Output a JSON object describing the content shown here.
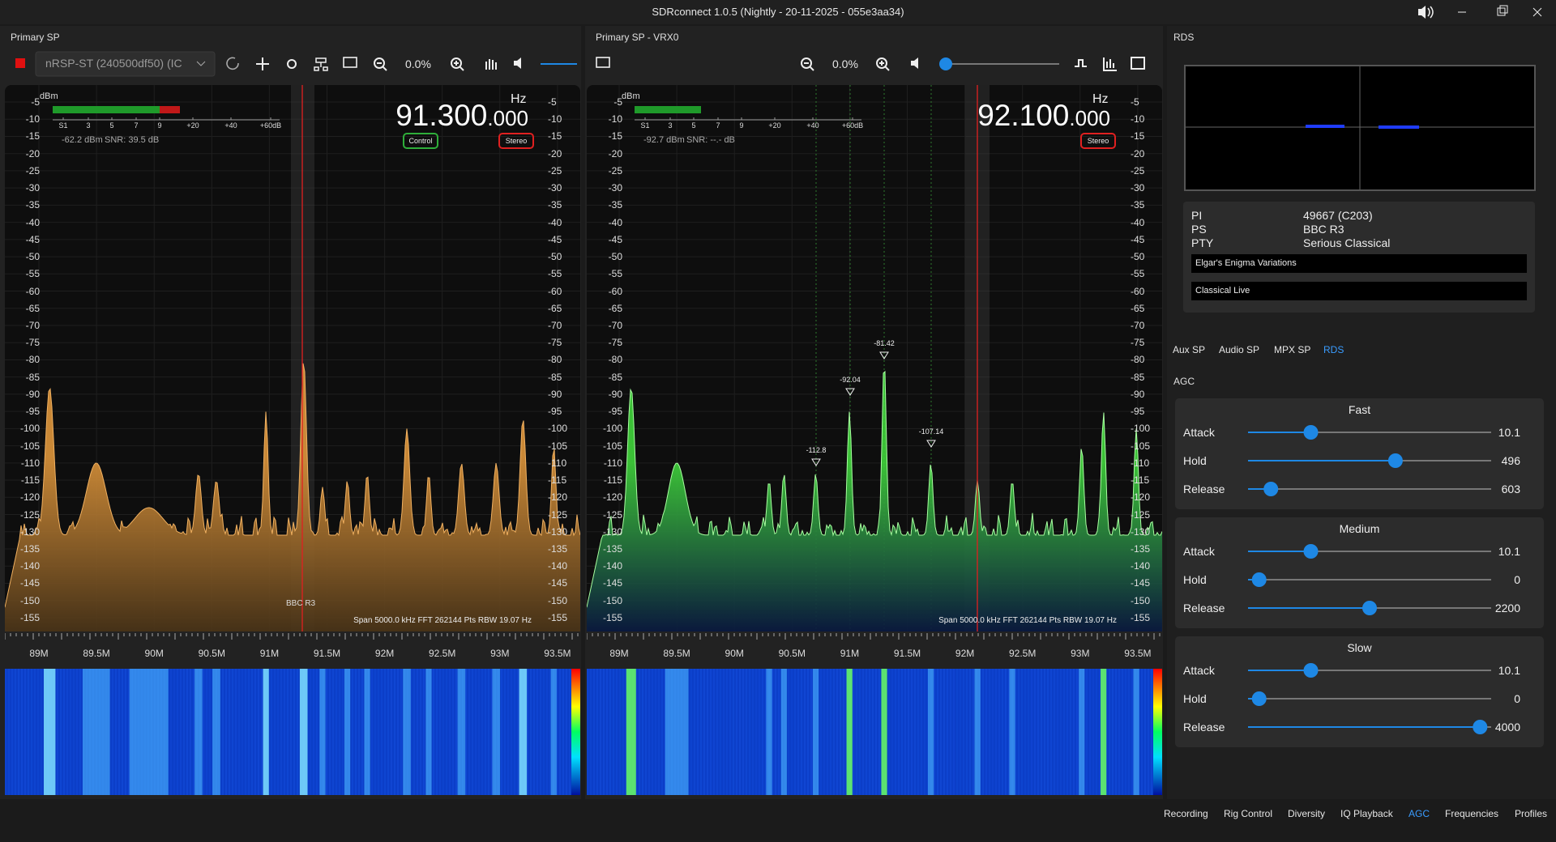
{
  "window": {
    "title": "SDRconnect 1.0.5 (Nightly - 20-11-2025 - 055e3aa34)"
  },
  "db_ticks": [
    "-5",
    "-10",
    "-15",
    "-20",
    "-25",
    "-30",
    "-35",
    "-40",
    "-45",
    "-50",
    "-55",
    "-60",
    "-65",
    "-70",
    "-75",
    "-80",
    "-85",
    "-90",
    "-95",
    "-100",
    "-105",
    "-110",
    "-115",
    "-120",
    "-125",
    "-130",
    "-135",
    "-140",
    "-145",
    "-150",
    "-155"
  ],
  "freq_ticks": [
    "89M",
    "89.5M",
    "90M",
    "90.5M",
    "91M",
    "91.5M",
    "92M",
    "92.5M",
    "93M",
    "93.5M"
  ],
  "smeter_scale": [
    "S1",
    "3",
    "5",
    "7",
    "9",
    "+20",
    "+40",
    "+60dB"
  ],
  "panels": [
    {
      "header": "Primary SP",
      "device": "nRSP-ST (240500df50) (IC",
      "zoom": "0.0%",
      "unit": "dBm",
      "level": "-62.2 dBm",
      "snr": "SNR:  39.5 dB",
      "freq_main": "91.300",
      "freq_sub": ".000",
      "hz": "Hz",
      "badges": [
        "Control",
        "Stereo"
      ],
      "station": "BBC R3",
      "span": "Span 5000.0 kHz FFT 262144 Pts  RBW 19.07 Hz",
      "markers": []
    },
    {
      "header": "Primary SP - VRX0",
      "zoom": "0.0%",
      "unit": "dBm",
      "level": "-92.7 dBm",
      "snr": "SNR:  --.- dB",
      "freq_main": "92.100",
      "freq_sub": ".000",
      "hz": "Hz",
      "badges": [
        "Stereo"
      ],
      "span": "Span 5000.0 kHz FFT 262144 Pts  RBW 19.07 Hz",
      "markers": [
        "-112.8",
        "-92.04",
        "-81.42",
        "-107.14"
      ]
    }
  ],
  "rds": {
    "title": "RDS",
    "fields": [
      {
        "key": "PI",
        "value": "49667 (C203)"
      },
      {
        "key": "PS",
        "value": "BBC R3"
      },
      {
        "key": "PTY",
        "value": "Serious Classical"
      }
    ],
    "radiotext": [
      "Elgar's Enigma Variations",
      "Classical Live"
    ],
    "tabs": [
      "Aux SP",
      "Audio SP",
      "MPX SP",
      "RDS"
    ]
  },
  "agc": {
    "title": "AGC",
    "groups": [
      {
        "name": "Fast",
        "rows": [
          {
            "label": "Attack",
            "value": "10.1"
          },
          {
            "label": "Hold",
            "value": "496"
          },
          {
            "label": "Release",
            "value": "603"
          }
        ]
      },
      {
        "name": "Medium",
        "rows": [
          {
            "label": "Attack",
            "value": "10.1"
          },
          {
            "label": "Hold",
            "value": "0"
          },
          {
            "label": "Release",
            "value": "2200"
          }
        ]
      },
      {
        "name": "Slow",
        "rows": [
          {
            "label": "Attack",
            "value": "10.1"
          },
          {
            "label": "Hold",
            "value": "0"
          },
          {
            "label": "Release",
            "value": "4000"
          }
        ]
      }
    ]
  },
  "bottom_tabs": [
    "Recording",
    "Rig Control",
    "Diversity",
    "IQ Playback",
    "AGC",
    "Frequencies",
    "Profiles"
  ]
}
